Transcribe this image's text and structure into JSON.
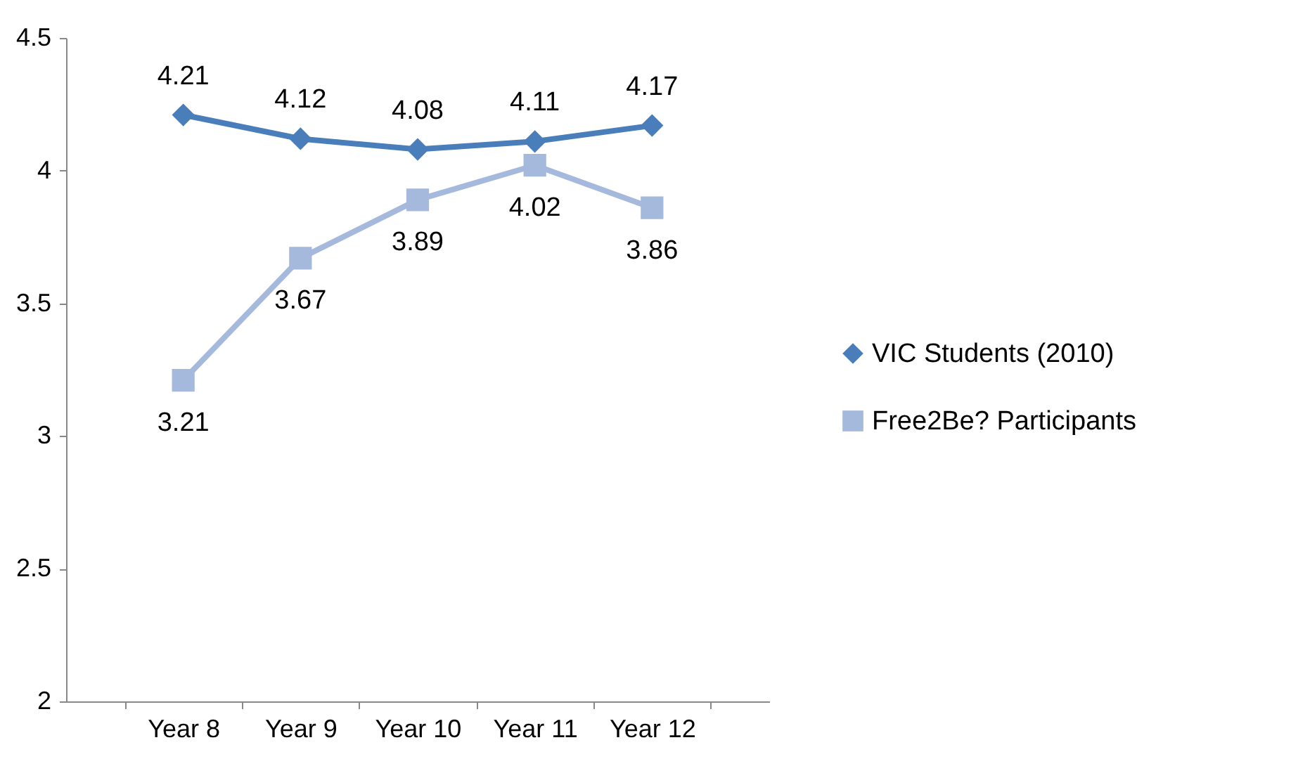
{
  "chart_data": {
    "type": "line",
    "categories": [
      "Year 8",
      "Year 9",
      "Year 10",
      "Year 11",
      "Year 12"
    ],
    "series": [
      {
        "name": "VIC Students (2010)",
        "color": "#4a7ebb",
        "marker": "diamond",
        "values": [
          4.21,
          4.12,
          4.08,
          4.11,
          4.17
        ]
      },
      {
        "name": "Free2Be? Participants",
        "color": "#a5b9dc",
        "marker": "square",
        "values": [
          3.21,
          3.67,
          3.89,
          4.02,
          3.86
        ]
      }
    ],
    "ylim": [
      2,
      4.5
    ],
    "yticks": [
      2,
      2.5,
      3,
      3.5,
      4,
      4.5
    ],
    "grid": false,
    "legend": "right",
    "data_labels": true
  }
}
